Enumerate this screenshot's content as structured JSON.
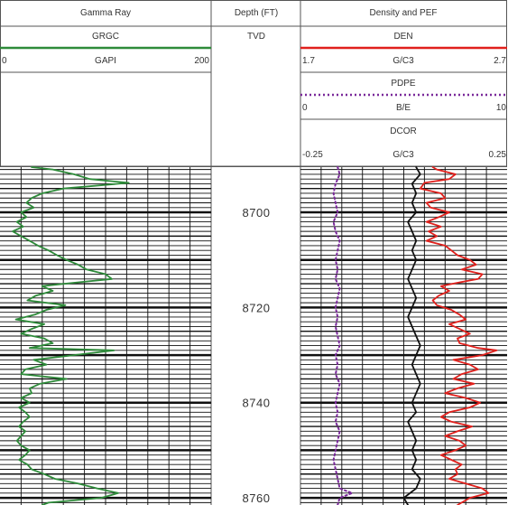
{
  "chart_data": {
    "type": "line",
    "tracks": [
      {
        "title": "Gamma Ray",
        "curves": [
          {
            "mnemonic": "GRGC",
            "unit": "GAPI",
            "min": "0",
            "max": "200",
            "color": "#2e8b3a",
            "style": "solid"
          }
        ]
      },
      {
        "title": "Depth (FT)",
        "reference": "TVD",
        "depth_labels": [
          "8700",
          "8720",
          "8740",
          "8760"
        ]
      },
      {
        "title": "Density and PEF",
        "curves": [
          {
            "mnemonic": "DEN",
            "unit": "G/C3",
            "min": "1.7",
            "max": "2.7",
            "color": "#e0201c",
            "style": "solid"
          },
          {
            "mnemonic": "PDPE",
            "unit": "B/E",
            "min": "0",
            "max": "10",
            "color": "#7a2a9a",
            "style": "dotted"
          },
          {
            "mnemonic": "DCOR",
            "unit": "G/C3",
            "min": "-0.25",
            "max": "0.25",
            "color": "#111111",
            "style": "solid"
          }
        ]
      }
    ],
    "depth_range": [
      8690.5,
      8761.5
    ],
    "series": [
      {
        "name": "GRGC",
        "depth": [
          8690.5,
          8691,
          8692,
          8693,
          8693.8,
          8695,
          8696,
          8697,
          8698,
          8699,
          8700,
          8701,
          8702,
          8703,
          8704,
          8705,
          8706,
          8707,
          8708,
          8709,
          8710,
          8711,
          8712,
          8713,
          8714,
          8714.8,
          8715.5,
          8716.5,
          8717.5,
          8718.5,
          8719.5,
          8720.5,
          8721.5,
          8722.5,
          8723.5,
          8724.5,
          8725.5,
          8726.5,
          8727.5,
          8728.5,
          8729,
          8730,
          8731,
          8732,
          8733,
          8734,
          8735,
          8736,
          8737,
          8738,
          8739,
          8740,
          8741,
          8742,
          8743,
          8744,
          8745,
          8746,
          8747,
          8748,
          8749,
          8750,
          8751,
          8752,
          8753,
          8754,
          8755,
          8756,
          8757,
          8758,
          8759,
          8760,
          8761,
          8761.5
        ],
        "value": [
          30,
          50,
          70,
          85,
          122,
          60,
          40,
          30,
          25,
          32,
          20,
          25,
          16,
          22,
          12,
          20,
          28,
          36,
          46,
          54,
          63,
          74,
          82,
          100,
          106,
          70,
          40,
          50,
          34,
          26,
          62,
          44,
          33,
          15,
          42,
          30,
          20,
          42,
          50,
          28,
          108,
          70,
          32,
          44,
          24,
          20,
          63,
          38,
          28,
          30,
          20,
          28,
          18,
          24,
          28,
          22,
          18,
          24,
          20,
          16,
          20,
          28,
          24,
          18,
          26,
          30,
          42,
          52,
          74,
          92,
          112,
          96,
          46,
          40
        ]
      },
      {
        "name": "DEN",
        "depth": [
          8690.5,
          8691,
          8692,
          8693,
          8693.8,
          8695,
          8696,
          8697,
          8698,
          8699,
          8700,
          8701,
          8702,
          8703,
          8704,
          8705,
          8706,
          8707,
          8708,
          8709,
          8710,
          8711,
          8712,
          8713,
          8714,
          8714.8,
          8715.5,
          8716.5,
          8717.5,
          8718.5,
          8719.5,
          8720.5,
          8721.5,
          8722.5,
          8723.5,
          8724.5,
          8725.5,
          8726.5,
          8727.5,
          8728.5,
          8729,
          8730,
          8731,
          8732,
          8733,
          8734,
          8735,
          8736,
          8737,
          8738,
          8739,
          8740,
          8741,
          8742,
          8743,
          8744,
          8745,
          8746,
          8747,
          8748,
          8749,
          8750,
          8751,
          8752,
          8753,
          8754,
          8755,
          8756,
          8757,
          8758,
          8759,
          8760,
          8761,
          8761.5
        ],
        "value": [
          2.34,
          2.36,
          2.45,
          2.42,
          2.3,
          2.28,
          2.38,
          2.4,
          2.31,
          2.33,
          2.42,
          2.37,
          2.31,
          2.38,
          2.32,
          2.36,
          2.31,
          2.4,
          2.43,
          2.46,
          2.52,
          2.55,
          2.48,
          2.58,
          2.56,
          2.46,
          2.38,
          2.42,
          2.37,
          2.34,
          2.36,
          2.43,
          2.47,
          2.5,
          2.42,
          2.47,
          2.52,
          2.46,
          2.47,
          2.56,
          2.65,
          2.58,
          2.44,
          2.52,
          2.56,
          2.48,
          2.44,
          2.54,
          2.46,
          2.4,
          2.5,
          2.57,
          2.52,
          2.42,
          2.38,
          2.43,
          2.53,
          2.46,
          2.4,
          2.47,
          2.5,
          2.45,
          2.38,
          2.43,
          2.48,
          2.45,
          2.46,
          2.42,
          2.5,
          2.58,
          2.61,
          2.52,
          2.48,
          2.46
        ]
      },
      {
        "name": "PDPE",
        "depth": [
          8690.5,
          8692,
          8694,
          8696,
          8698,
          8700,
          8702,
          8704,
          8706,
          8708,
          8710,
          8712,
          8714,
          8716,
          8718,
          8720,
          8722,
          8724,
          8726,
          8728,
          8730,
          8732,
          8734,
          8736,
          8738,
          8740,
          8742,
          8744,
          8746,
          8748,
          8750,
          8752,
          8754,
          8756,
          8758,
          8759,
          8760,
          8761.5
        ],
        "value": [
          1.8,
          1.9,
          1.7,
          1.6,
          1.7,
          1.8,
          1.6,
          1.7,
          1.9,
          1.8,
          1.7,
          1.8,
          1.7,
          1.9,
          1.8,
          1.7,
          1.8,
          1.7,
          1.8,
          1.9,
          1.7,
          1.8,
          1.7,
          1.9,
          1.8,
          1.7,
          1.8,
          1.7,
          1.9,
          1.8,
          1.7,
          1.6,
          1.7,
          1.8,
          1.9,
          2.5,
          1.9,
          1.8
        ]
      },
      {
        "name": "DCOR",
        "depth": [
          8690.5,
          8692,
          8694,
          8696,
          8698,
          8700,
          8702,
          8704,
          8706,
          8708,
          8710,
          8712,
          8714,
          8716,
          8718,
          8720,
          8722,
          8724,
          8726,
          8728,
          8730,
          8732,
          8734,
          8736,
          8738,
          8740,
          8742,
          8744,
          8746,
          8748,
          8750,
          8752,
          8754,
          8756,
          8758,
          8760,
          8761.5
        ],
        "value": [
          0.03,
          0.04,
          0.02,
          0.03,
          0.02,
          0.03,
          0.01,
          0.02,
          0.03,
          0.02,
          0.03,
          0.02,
          0.01,
          0.02,
          0.03,
          0.02,
          0.01,
          0.02,
          0.03,
          0.04,
          0.03,
          0.02,
          0.03,
          0.04,
          0.03,
          0.02,
          0.03,
          0.01,
          0.02,
          0.03,
          0.02,
          0.03,
          0.02,
          0.04,
          0.03,
          0.0,
          0.01
        ]
      }
    ]
  }
}
